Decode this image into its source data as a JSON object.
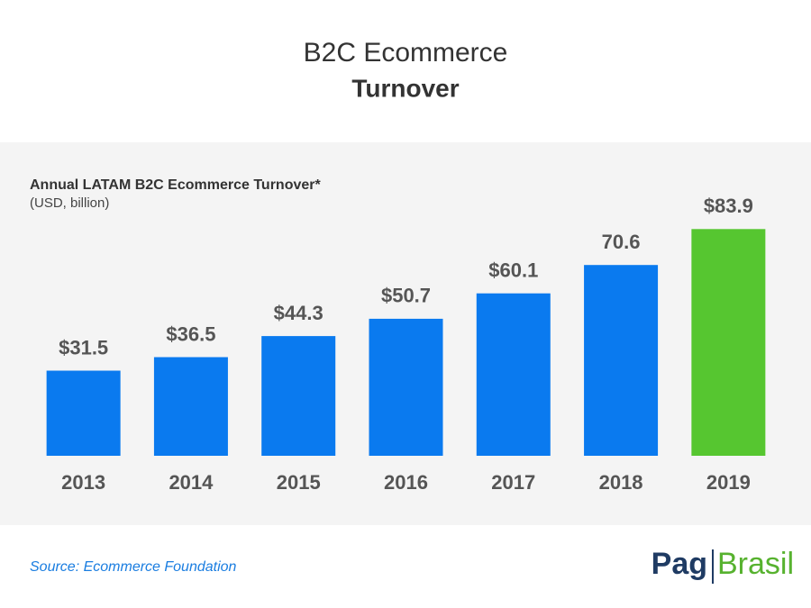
{
  "chart_data": {
    "type": "bar",
    "title": "B2C Ecommerce",
    "subtitle": "Turnover",
    "chart_label": "Annual LATAM B2C Ecommerce Turnover*",
    "unit_label": "(USD, billion)",
    "categories": [
      "2013",
      "2014",
      "2015",
      "2016",
      "2017",
      "2018",
      "2019"
    ],
    "values": [
      31.5,
      36.5,
      44.3,
      50.7,
      60.1,
      70.6,
      83.9
    ],
    "value_labels": [
      "$31.5",
      "$36.5",
      "$44.3",
      "$50.7",
      "$60.1",
      "70.6",
      "$83.9"
    ],
    "colors": [
      "#0a7aef",
      "#0a7aef",
      "#0a7aef",
      "#0a7aef",
      "#0a7aef",
      "#0a7aef",
      "#56c630"
    ],
    "source": "Source: Ecommerce Foundation"
  },
  "logo": {
    "left": "Pag",
    "right": "Brasil"
  }
}
